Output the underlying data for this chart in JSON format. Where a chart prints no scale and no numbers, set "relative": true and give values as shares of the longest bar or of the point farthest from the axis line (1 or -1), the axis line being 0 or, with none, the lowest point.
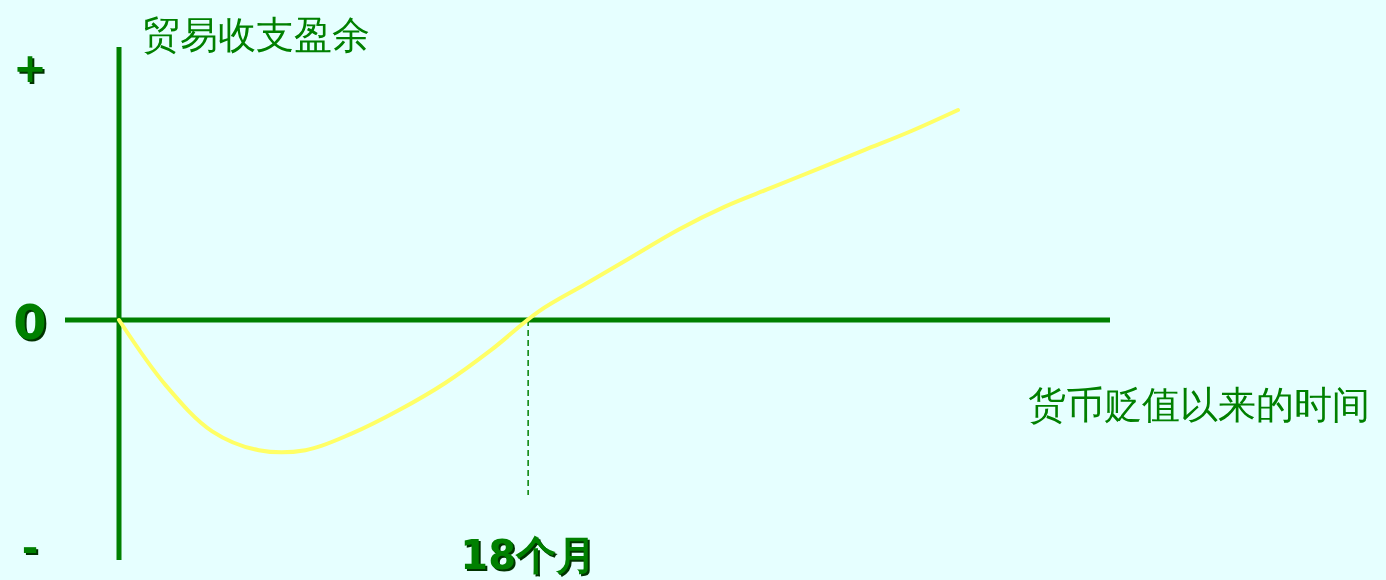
{
  "chart_data": {
    "type": "line",
    "relative": true,
    "ylabel": "贸易收支盈余",
    "xlabel": "货币贬值以来的时间",
    "categories": [
      null,
      null,
      null,
      null,
      null,
      null,
      null,
      null,
      null,
      null,
      null,
      null,
      null,
      null,
      null,
      null,
      null,
      null,
      null
    ],
    "series": [
      {
        "color": "#ffff66",
        "values": [
          0,
          -0.31,
          -0.53,
          -0.62,
          -0.62,
          -0.54,
          -0.43,
          -0.3,
          -0.14,
          0.04,
          0.17,
          0.3,
          0.43,
          0.54,
          0.63,
          0.72,
          0.81,
          0.9,
          1
        ]
      }
    ],
    "ref_lines": [
      {
        "axis": "y",
        "value": 0,
        "color": "#008000"
      }
    ],
    "annotations": [
      "+",
      "0",
      "-",
      "18个月"
    ],
    "grid": false
  }
}
